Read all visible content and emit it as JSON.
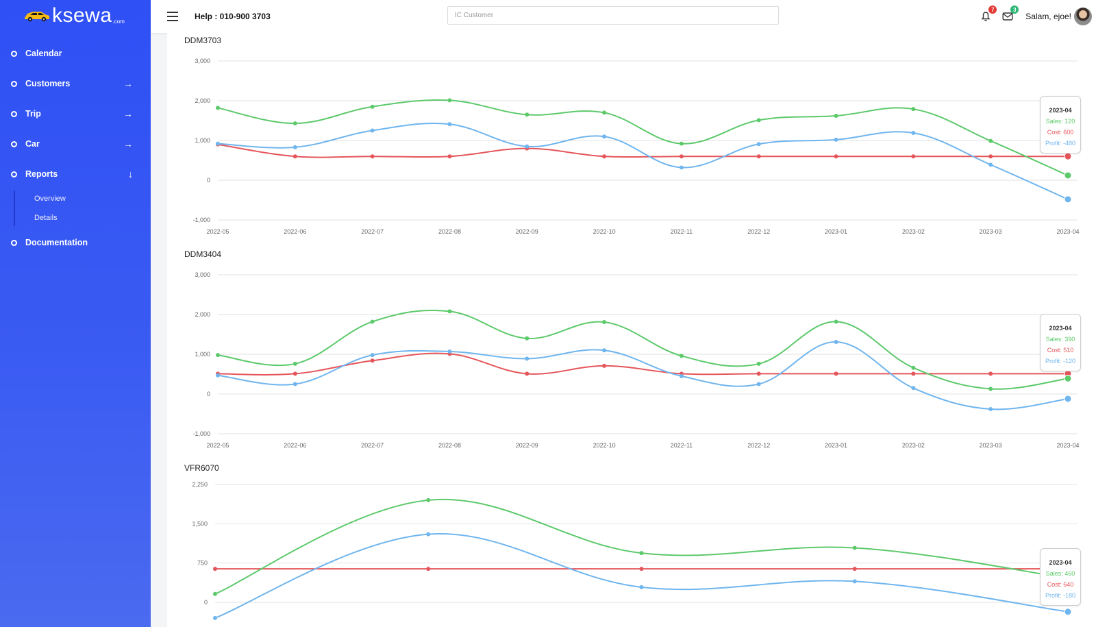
{
  "brand": {
    "name": "ksewa",
    "suffix": ".com",
    "logo_color": "#f5b914"
  },
  "sidebar": {
    "items": [
      {
        "label": "Calendar",
        "arrow": ""
      },
      {
        "label": "Customers",
        "arrow": "→"
      },
      {
        "label": "Trip",
        "arrow": "→"
      },
      {
        "label": "Car",
        "arrow": "→"
      },
      {
        "label": "Reports",
        "arrow": "↓"
      }
    ],
    "reports_sub": [
      "Overview",
      "Details"
    ],
    "documentation": "Documentation"
  },
  "header": {
    "help": "Help : 010-900 3703",
    "search_placeholder": "IC Customer",
    "notifications_count": "7",
    "messages_count": "3",
    "greeting": "Salam, ejoe!"
  },
  "colors": {
    "sales": "#5cc96a",
    "cost": "#e5555a",
    "profit": "#6fb5ee",
    "accent": "#2f50f5"
  },
  "chart_data": [
    {
      "type": "line",
      "title": "DDM3703",
      "x": [
        "2022-05",
        "2022-06",
        "2022-07",
        "2022-08",
        "2022-09",
        "2022-10",
        "2022-11",
        "2022-12",
        "2023-01",
        "2023-02",
        "2023-03",
        "2023-04"
      ],
      "ylim": [
        -1000,
        3000
      ],
      "yticks": [
        3000,
        2000,
        1000,
        0,
        -1000
      ],
      "ytick_labels": [
        "3,000",
        "2,000",
        "1,000",
        "0",
        "-1,000"
      ],
      "series": [
        {
          "key": "sales",
          "values": [
            1820,
            1430,
            1850,
            2010,
            1650,
            1700,
            920,
            1510,
            1620,
            1790,
            990,
            120
          ]
        },
        {
          "key": "cost",
          "values": [
            900,
            600,
            600,
            600,
            800,
            600,
            600,
            600,
            600,
            600,
            600,
            600
          ]
        },
        {
          "key": "profit",
          "values": [
            920,
            830,
            1250,
            1410,
            850,
            1100,
            320,
            910,
            1020,
            1190,
            390,
            -480
          ]
        }
      ],
      "tooltip": {
        "date": "2023-04",
        "sales": "Sales: 120",
        "cost": "Cost: 600",
        "profit": "Profit: -480"
      }
    },
    {
      "type": "line",
      "title": "DDM3404",
      "x": [
        "2022-05",
        "2022-06",
        "2022-07",
        "2022-08",
        "2022-09",
        "2022-10",
        "2022-11",
        "2022-12",
        "2023-01",
        "2023-02",
        "2023-03",
        "2023-04"
      ],
      "ylim": [
        -1000,
        3000
      ],
      "yticks": [
        3000,
        2000,
        1000,
        0,
        -1000
      ],
      "ytick_labels": [
        "3,000",
        "2,000",
        "1,000",
        "0",
        "-1,000"
      ],
      "series": [
        {
          "key": "sales",
          "values": [
            980,
            760,
            1820,
            2080,
            1400,
            1810,
            960,
            760,
            1820,
            660,
            130,
            390
          ]
        },
        {
          "key": "cost",
          "values": [
            510,
            510,
            840,
            1010,
            510,
            710,
            510,
            510,
            510,
            510,
            510,
            510
          ]
        },
        {
          "key": "profit",
          "values": [
            470,
            250,
            980,
            1070,
            890,
            1100,
            450,
            250,
            1310,
            150,
            -380,
            -120
          ]
        }
      ],
      "tooltip": {
        "date": "2023-04",
        "sales": "Sales: 390",
        "cost": "Cost: 510",
        "profit": "Profit: -120"
      }
    },
    {
      "type": "line",
      "title": "VFR6070",
      "x": [
        "",
        "",
        "",
        "",
        ""
      ],
      "ylim": [
        -300,
        2250
      ],
      "yticks": [
        2250,
        1500,
        750,
        0
      ],
      "ytick_labels": [
        "2,250",
        "1,500",
        "750",
        "0"
      ],
      "series": [
        {
          "key": "sales",
          "values": [
            160,
            1950,
            940,
            1040,
            460
          ]
        },
        {
          "key": "cost",
          "values": [
            640,
            640,
            640,
            640,
            640
          ]
        },
        {
          "key": "profit",
          "values": [
            -300,
            1300,
            290,
            400,
            -180
          ]
        }
      ],
      "tooltip": {
        "date": "2023-04",
        "sales": "Sales: 460",
        "cost": "Cost: 640",
        "profit": "Profit: -180"
      }
    }
  ]
}
